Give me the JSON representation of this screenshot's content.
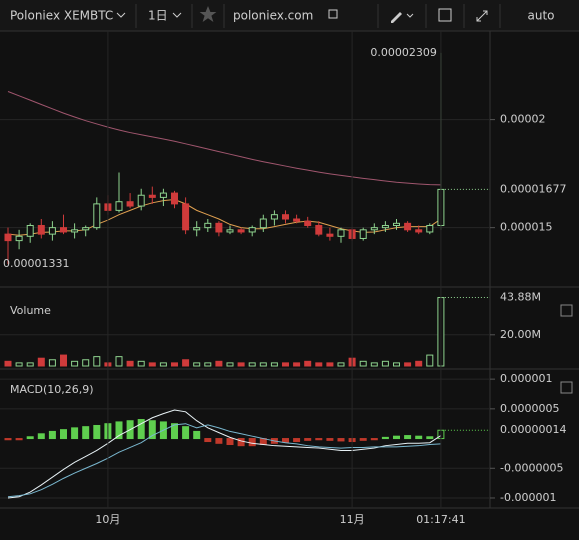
{
  "toolbar": {
    "symbol": "Poloniex XEMBTC",
    "interval": "1日",
    "site": "poloniex.com",
    "scale": "auto"
  },
  "chart_data": [
    {
      "type": "candlestick",
      "up_color": "#8fd48f",
      "down_color": "#d03b3b",
      "grid": true,
      "ylim": [
        1.23e-05,
        2.41e-05
      ],
      "yticks": [
        2e-05,
        1.5e-05
      ],
      "open": [
        1.47e-05,
        1.44e-05,
        1.46e-05,
        1.51e-05,
        1.47e-05,
        1.5e-05,
        1.48e-05,
        1.49e-05,
        1.5e-05,
        1.61e-05,
        1.58e-05,
        1.62e-05,
        1.6e-05,
        1.65e-05,
        1.64e-05,
        1.66e-05,
        1.61e-05,
        1.49e-05,
        1.5e-05,
        1.52e-05,
        1.48e-05,
        1.49e-05,
        1.48e-05,
        1.5e-05,
        1.54e-05,
        1.56e-05,
        1.54e-05,
        1.53e-05,
        1.51e-05,
        1.47e-05,
        1.46e-05,
        1.49e-05,
        1.45e-05,
        1.49e-05,
        1.5e-05,
        1.51e-05,
        1.52e-05,
        1.49e-05,
        1.48e-05,
        1.51e-05
      ],
      "high": [
        1.5e-05,
        1.49e-05,
        1.52e-05,
        1.54e-05,
        1.53e-05,
        1.56e-05,
        1.52e-05,
        1.51e-05,
        1.64e-05,
        1.65e-05,
        1.755e-05,
        1.66e-05,
        1.68e-05,
        1.69e-05,
        1.68e-05,
        1.67e-05,
        1.64e-05,
        1.53e-05,
        1.54e-05,
        1.53e-05,
        1.51e-05,
        1.5e-05,
        1.51e-05,
        1.56e-05,
        1.58e-05,
        1.58e-05,
        1.56e-05,
        1.55e-05,
        1.53e-05,
        1.5e-05,
        1.5e-05,
        1.5e-05,
        1.5e-05,
        1.52e-05,
        1.53e-05,
        1.54e-05,
        1.53e-05,
        1.51e-05,
        1.52e-05,
        2.309e-05
      ],
      "low": [
        1.331e-05,
        1.4e-05,
        1.43e-05,
        1.45e-05,
        1.44e-05,
        1.47e-05,
        1.45e-05,
        1.46e-05,
        1.49e-05,
        1.56e-05,
        1.57e-05,
        1.59e-05,
        1.58e-05,
        1.61e-05,
        1.6e-05,
        1.59e-05,
        1.47e-05,
        1.46e-05,
        1.48e-05,
        1.46e-05,
        1.47e-05,
        1.47e-05,
        1.46e-05,
        1.48e-05,
        1.51e-05,
        1.52e-05,
        1.52e-05,
        1.5e-05,
        1.46e-05,
        1.44e-05,
        1.43e-05,
        1.44e-05,
        1.44e-05,
        1.47e-05,
        1.48e-05,
        1.49e-05,
        1.48e-05,
        1.47e-05,
        1.47e-05,
        1.49e-05
      ],
      "close": [
        1.44e-05,
        1.46e-05,
        1.51e-05,
        1.47e-05,
        1.5e-05,
        1.48e-05,
        1.49e-05,
        1.5e-05,
        1.61e-05,
        1.58e-05,
        1.62e-05,
        1.6e-05,
        1.65e-05,
        1.64e-05,
        1.66e-05,
        1.61e-05,
        1.49e-05,
        1.5e-05,
        1.52e-05,
        1.48e-05,
        1.49e-05,
        1.48e-05,
        1.5e-05,
        1.54e-05,
        1.56e-05,
        1.54e-05,
        1.53e-05,
        1.51e-05,
        1.47e-05,
        1.46e-05,
        1.49e-05,
        1.45e-05,
        1.49e-05,
        1.5e-05,
        1.51e-05,
        1.52e-05,
        1.49e-05,
        1.48e-05,
        1.51e-05,
        1.677e-05
      ],
      "overlays": [
        {
          "color": "#a0566e",
          "values": [
            2.13e-05,
            2.11e-05,
            2.09e-05,
            2.07e-05,
            2.05e-05,
            2.03e-05,
            2.012e-05,
            1.995e-05,
            1.98e-05,
            1.965e-05,
            1.952e-05,
            1.94e-05,
            1.93e-05,
            1.92e-05,
            1.91e-05,
            1.9e-05,
            1.888e-05,
            1.876e-05,
            1.864e-05,
            1.852e-05,
            1.84e-05,
            1.828e-05,
            1.816e-05,
            1.805e-05,
            1.795e-05,
            1.785e-05,
            1.775e-05,
            1.766e-05,
            1.757e-05,
            1.749e-05,
            1.742e-05,
            1.735e-05,
            1.728e-05,
            1.722e-05,
            1.716e-05,
            1.71e-05,
            1.706e-05,
            1.702e-05,
            1.699e-05,
            1.698e-05
          ]
        },
        {
          "color": "#e0a050",
          "values": [
            1.47e-05,
            1.465e-05,
            1.47e-05,
            1.478e-05,
            1.48e-05,
            1.485e-05,
            1.485e-05,
            1.49e-05,
            1.515e-05,
            1.535e-05,
            1.56e-05,
            1.58e-05,
            1.6e-05,
            1.615e-05,
            1.625e-05,
            1.63e-05,
            1.61e-05,
            1.58e-05,
            1.56e-05,
            1.54e-05,
            1.515e-05,
            1.5e-05,
            1.495e-05,
            1.495e-05,
            1.505e-05,
            1.515e-05,
            1.525e-05,
            1.53e-05,
            1.525e-05,
            1.51e-05,
            1.495e-05,
            1.485e-05,
            1.478e-05,
            1.48e-05,
            1.49e-05,
            1.5e-05,
            1.505e-05,
            1.505e-05,
            1.505e-05,
            1.54e-05
          ]
        }
      ]
    },
    {
      "type": "bar",
      "title": "Volume",
      "ylim": [
        0,
        50000000
      ],
      "yticks": [
        {
          "value": 20000000,
          "label": "20.00M"
        }
      ],
      "values": [
        3000000,
        2000000,
        2000000,
        5000000,
        4000000,
        7000000,
        3000000,
        4000000,
        6000000,
        2000000,
        6000000,
        3000000,
        3000000,
        2000000,
        2000000,
        2000000,
        4000000,
        2000000,
        2000000,
        3000000,
        2000000,
        2000000,
        2000000,
        2000000,
        2000000,
        2000000,
        2000000,
        3000000,
        2000000,
        2000000,
        2000000,
        5000000,
        3000000,
        2000000,
        3000000,
        2000000,
        2000000,
        3000000,
        7000000,
        43880000
      ],
      "value_labels": [
        null,
        null,
        null,
        null,
        null,
        null,
        null,
        null,
        null,
        null,
        null,
        null,
        null,
        null,
        null,
        null,
        null,
        null,
        null,
        null,
        null,
        null,
        null,
        null,
        null,
        null,
        null,
        null,
        null,
        null,
        null,
        null,
        null,
        null,
        null,
        null,
        null,
        null,
        null,
        "43.88M"
      ]
    },
    {
      "type": "macd",
      "title": "MACD(10,26,9)",
      "up_color": "#5fcf4f",
      "down_color": "#c0392b",
      "ylim": [
        -1.135e-06,
        1.12e-06
      ],
      "yticks": [
        {
          "value": 1e-06,
          "label": "0.000001"
        },
        {
          "value": 5e-07,
          "label": "0.0000005"
        },
        {
          "value": -5e-07,
          "label": "-0.0000005"
        },
        {
          "value": -1e-06,
          "label": "-0.000001"
        }
      ],
      "xticks": [
        {
          "value": 9,
          "label": "10月"
        },
        {
          "value": 31,
          "label": "11月"
        },
        {
          "value": 39,
          "label": "01:17:41"
        }
      ],
      "values": [
        -2e-08,
        -2e-08,
        3e-08,
        8e-08,
        1.2e-07,
        1.5e-07,
        1.8e-07,
        2e-07,
        2.2e-07,
        2.5e-07,
        2.8e-07,
        3e-07,
        3.2e-07,
        3e-07,
        2.8e-07,
        2.5e-07,
        2e-07,
        1.2e-07,
        -5e-08,
        -8e-08,
        -1e-07,
        -1.2e-07,
        -1.2e-07,
        -1e-07,
        -8e-08,
        -6e-08,
        -5e-08,
        -3e-08,
        -2e-08,
        -3e-08,
        -4e-08,
        -5e-08,
        -3e-08,
        -2e-08,
        2e-08,
        4e-08,
        5e-08,
        4e-08,
        3e-08,
        1.4e-07
      ],
      "value_labels": [
        null,
        null,
        null,
        null,
        null,
        null,
        null,
        null,
        null,
        null,
        null,
        null,
        null,
        null,
        null,
        null,
        null,
        null,
        null,
        null,
        null,
        null,
        null,
        null,
        null,
        null,
        null,
        null,
        null,
        null,
        null,
        null,
        null,
        null,
        null,
        null,
        null,
        null,
        null,
        "0.00000014"
      ],
      "series": [
        {
          "color": "#e8f2f6",
          "values": [
            -1e-06,
            -9.8e-07,
            -9e-07,
            -7.8e-07,
            -6.5e-07,
            -5.2e-07,
            -4e-07,
            -3e-07,
            -2e-07,
            -8e-08,
            5e-08,
            1.5e-07,
            2.5e-07,
            3.5e-07,
            4.2e-07,
            4.8e-07,
            4.5e-07,
            3e-07,
            1.8e-07,
            1e-07,
            2e-08,
            -4e-08,
            -8e-08,
            -1e-07,
            -1.2e-07,
            -1.3e-07,
            -1.4e-07,
            -1.5e-07,
            -1.6e-07,
            -1.8e-07,
            -2e-07,
            -2e-07,
            -1.8e-07,
            -1.6e-07,
            -1.2e-07,
            -1e-07,
            -8e-08,
            -8e-08,
            -7e-08,
            5e-08
          ]
        },
        {
          "color": "#7ab8d0",
          "values": [
            -9.8e-07,
            -9.6e-07,
            -9.3e-07,
            -8.6e-07,
            -7.7e-07,
            -6.7e-07,
            -5.8e-07,
            -5e-07,
            -4.2e-07,
            -3.3e-07,
            -2.3e-07,
            -1.5e-07,
            -7e-08,
            5e-08,
            1.4e-07,
            2.3e-07,
            2.5e-07,
            1.8e-07,
            2.3e-07,
            1.8e-07,
            1.2e-07,
            8e-08,
            4e-08,
            0,
            -4e-08,
            -7e-08,
            -9e-08,
            -1.2e-07,
            -1.4e-07,
            -1.5e-07,
            -1.6e-07,
            -1.5e-07,
            -1.5e-07,
            -1.4e-07,
            -1.4e-07,
            -1.4e-07,
            -1.3e-07,
            -1.2e-07,
            -1e-07,
            -9e-08
          ]
        }
      ]
    }
  ]
}
